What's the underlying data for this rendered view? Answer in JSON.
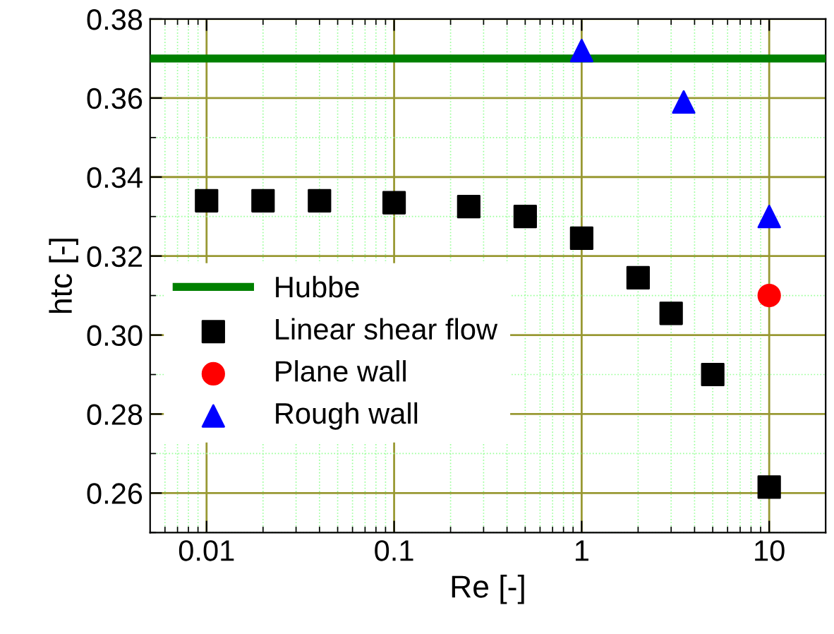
{
  "chart_data": {
    "type": "scatter",
    "xlabel": "Re [-]",
    "ylabel": "htc [-]",
    "log": "x",
    "xlim": [
      0.005,
      20
    ],
    "xticks": [
      {
        "value": 0.006,
        "label": null
      },
      {
        "value": 0.007,
        "label": null
      },
      {
        "value": 0.008,
        "label": null
      },
      {
        "value": 0.009,
        "label": null
      },
      0.01,
      {
        "value": 0.02,
        "label": null
      },
      {
        "value": 0.03,
        "label": null
      },
      {
        "value": 0.04,
        "label": null
      },
      {
        "value": 0.05,
        "label": null
      },
      {
        "value": 0.06,
        "label": null
      },
      {
        "value": 0.07,
        "label": null
      },
      {
        "value": 0.08,
        "label": null
      },
      {
        "value": 0.09,
        "label": null
      },
      0.1,
      {
        "value": 0.2,
        "label": null
      },
      {
        "value": 0.3,
        "label": null
      },
      {
        "value": 0.4,
        "label": null
      },
      {
        "value": 0.5,
        "label": null
      },
      {
        "value": 0.6,
        "label": null
      },
      {
        "value": 0.7,
        "label": null
      },
      {
        "value": 0.8,
        "label": null
      },
      {
        "value": 0.9,
        "label": null
      },
      1,
      {
        "value": 2,
        "label": null
      },
      {
        "value": 3,
        "label": null
      },
      {
        "value": 4,
        "label": null
      },
      {
        "value": 5,
        "label": null
      },
      {
        "value": 6,
        "label": null
      },
      {
        "value": 7,
        "label": null
      },
      {
        "value": 8,
        "label": null
      },
      {
        "value": 9,
        "label": null
      },
      10
    ],
    "ylim": [
      0.25,
      0.38
    ],
    "yticks": [
      {
        "value": 0.25,
        "label": null
      },
      {
        "value": 0.26,
        "label": "0.26"
      },
      {
        "value": 0.27,
        "label": null
      },
      {
        "value": 0.28,
        "label": "0.28"
      },
      {
        "value": 0.29,
        "label": null
      },
      {
        "value": 0.3,
        "label": "0.30"
      },
      {
        "value": 0.31,
        "label": null
      },
      {
        "value": 0.32,
        "label": "0.32"
      },
      {
        "value": 0.33,
        "label": null
      },
      {
        "value": 0.34,
        "label": "0.34"
      },
      {
        "value": 0.35,
        "label": null
      },
      {
        "value": 0.36,
        "label": "0.36"
      },
      {
        "value": 0.37,
        "label": null
      },
      {
        "value": 0.38,
        "label": "0.38"
      }
    ],
    "grid": true,
    "legend": "center left",
    "series": [
      {
        "name": "Hubbe",
        "type": "line",
        "color": "#008000",
        "x": [
          0.005,
          20
        ],
        "values": [
          0.37,
          0.37
        ],
        "marker": "none",
        "line_style": "solid"
      },
      {
        "name": "Linear shear flow",
        "color": "#000000",
        "marker": "square",
        "x": [
          0.01,
          0.02,
          0.04,
          0.1,
          0.25,
          0.5,
          1,
          2,
          3,
          5,
          10
        ],
        "values": [
          0.334,
          0.334,
          0.334,
          0.3335,
          0.3325,
          0.33,
          0.3245,
          0.3145,
          0.3055,
          0.29,
          0.2615
        ]
      },
      {
        "name": "Plane wall",
        "color": "#ff0000",
        "marker": "circle",
        "x": [
          10
        ],
        "values": [
          0.31
        ]
      },
      {
        "name": "Rough wall",
        "color": "#0000ff",
        "marker": "triangle",
        "x": [
          1,
          3.5,
          10
        ],
        "values": [
          0.372,
          0.359,
          0.33
        ]
      }
    ]
  }
}
